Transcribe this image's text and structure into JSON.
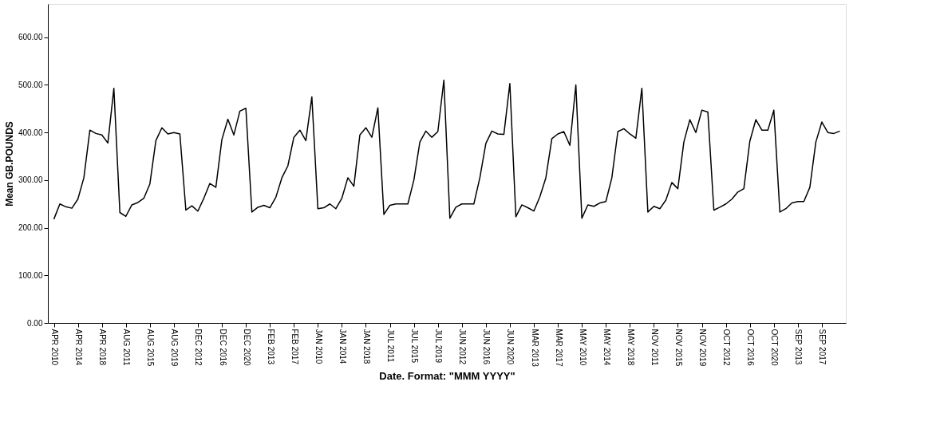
{
  "chart_data": {
    "type": "line",
    "xlabel": "Date.  Format:  \"MMM YYYY\"",
    "ylabel": "Mean GB.POUNDS",
    "categories": [
      "APR 2010",
      null,
      null,
      null,
      "APR 2014",
      null,
      null,
      null,
      "APR 2018",
      null,
      null,
      null,
      "AUG 2011",
      null,
      null,
      null,
      "AUG 2015",
      null,
      null,
      null,
      "AUG 2019",
      null,
      null,
      null,
      "DEC 2012",
      null,
      null,
      null,
      "DEC 2016",
      null,
      null,
      null,
      "DEC 2020",
      null,
      null,
      null,
      "FEB 2013",
      null,
      null,
      null,
      "FEB 2017",
      null,
      null,
      null,
      "JAN 2010",
      null,
      null,
      null,
      "JAN 2014",
      null,
      null,
      null,
      "JAN 2018",
      null,
      null,
      null,
      "JUL 2011",
      null,
      null,
      null,
      "JUL 2015",
      null,
      null,
      null,
      "JUL 2019",
      null,
      null,
      null,
      "JUN 2012",
      null,
      null,
      null,
      "JUN 2016",
      null,
      null,
      null,
      "JUN 2020",
      null,
      null,
      null,
      "MAR 2013",
      null,
      null,
      null,
      "MAR 2017",
      null,
      null,
      null,
      "MAY 2010",
      null,
      null,
      null,
      "MAY 2014",
      null,
      null,
      null,
      "MAY 2018",
      null,
      null,
      null,
      "NOV 2011",
      null,
      null,
      null,
      "NOV 2015",
      null,
      null,
      null,
      "NOV 2019",
      null,
      null,
      null,
      "OCT 2012",
      null,
      null,
      null,
      "OCT 2016",
      null,
      null,
      null,
      "OCT 2020",
      null,
      null,
      null,
      "SEP 2013",
      null,
      null,
      null,
      "SEP 2017",
      null,
      null,
      null
    ],
    "series": [
      {
        "color": "#000000",
        "values": [
          218,
          250,
          244,
          241,
          260,
          305,
          405,
          398,
          395,
          378,
          493,
          232,
          224,
          248,
          253,
          262,
          292,
          383,
          410,
          397,
          400,
          397,
          237,
          246,
          235,
          262,
          293,
          285,
          385,
          428,
          395,
          445,
          451,
          233,
          243,
          247,
          242,
          264,
          305,
          330,
          390,
          405,
          383,
          475,
          240,
          242,
          250,
          240,
          262,
          305,
          287,
          395,
          410,
          390,
          452,
          228,
          247,
          250,
          250,
          250,
          300,
          380,
          403,
          390,
          402,
          510,
          220,
          243,
          250,
          250,
          250,
          305,
          377,
          403,
          397,
          396,
          503,
          223,
          248,
          242,
          235,
          265,
          305,
          387,
          397,
          402,
          373,
          500,
          220,
          248,
          245,
          252,
          255,
          305,
          402,
          408,
          397,
          388,
          493,
          233,
          245,
          240,
          258,
          295,
          282,
          380,
          427,
          400,
          447,
          443,
          237,
          243,
          250,
          260,
          275,
          282,
          382,
          427,
          405,
          405,
          447,
          233,
          240,
          252,
          255,
          255,
          285,
          380,
          422,
          400,
          398,
          403
        ]
      }
    ],
    "ylim": [
      0,
      670
    ],
    "yticks": [
      {
        "value": 0,
        "label": "0.00"
      },
      {
        "value": 100,
        "label": "100.00"
      },
      {
        "value": 200,
        "label": "200.00"
      },
      {
        "value": 300,
        "label": "300.00"
      },
      {
        "value": 400,
        "label": "400.00"
      },
      {
        "value": 500,
        "label": "500.00"
      },
      {
        "value": 600,
        "label": "600.00"
      }
    ],
    "grid": false,
    "legend": false,
    "marker": "none",
    "line_style": "solid"
  }
}
